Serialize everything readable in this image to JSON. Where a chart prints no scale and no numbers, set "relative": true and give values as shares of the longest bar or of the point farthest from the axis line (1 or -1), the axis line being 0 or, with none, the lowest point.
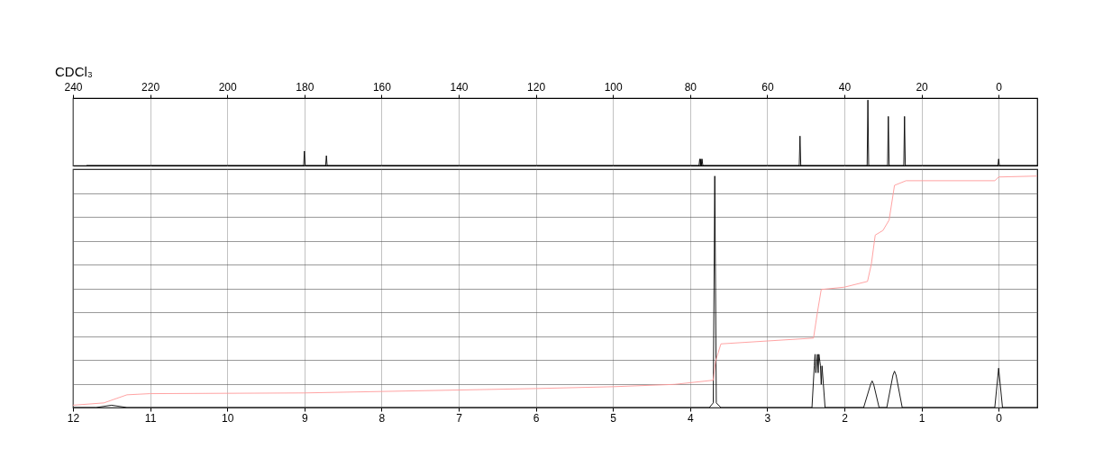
{
  "chart_data": [
    {
      "type": "line",
      "annotations": [
        "CDCl₃"
      ],
      "xlim": [
        240,
        -10
      ],
      "xticks": [
        240,
        220,
        200,
        180,
        160,
        140,
        120,
        100,
        80,
        60,
        40,
        20,
        0
      ],
      "relative": true,
      "tick_labels": "x",
      "grid": "x",
      "series": [
        {
          "color": "#000000",
          "x": [
            236.5,
            180.2,
            180.0,
            179.8,
            174.5,
            174.3,
            174.1,
            77.7,
            77.5,
            77.3,
            77.2,
            77.1,
            76.9,
            76.7,
            51.7,
            51.5,
            51.3,
            34.1,
            33.9,
            33.7,
            28.8,
            28.6,
            28.4,
            24.6,
            24.4,
            24.2,
            0.2,
            0.0,
            -0.2,
            -10
          ],
          "values": [
            0,
            0,
            0.22,
            0,
            0,
            0.15,
            0,
            0,
            0.1,
            0,
            0.1,
            0,
            0.1,
            0,
            0,
            0.45,
            0,
            0,
            1.0,
            0,
            0,
            0.75,
            0,
            0,
            0.75,
            0,
            0,
            0.1,
            0,
            0
          ]
        }
      ]
    },
    {
      "type": "line",
      "xlim": [
        12,
        -0.5
      ],
      "xticks": [
        12,
        11,
        10,
        9,
        8,
        7,
        6,
        5,
        4,
        3,
        2,
        1,
        0
      ],
      "relative": true,
      "tick_labels": "x",
      "grid": true,
      "series": [
        {
          "color": "#000000",
          "x": [
            12,
            11.7,
            11.5,
            11.3,
            3.75,
            3.7,
            3.68,
            3.66,
            3.6,
            2.42,
            2.39,
            2.38,
            2.37,
            2.35,
            2.34,
            2.33,
            2.31,
            2.3,
            2.29,
            2.25,
            1.75,
            1.66,
            1.64,
            1.62,
            1.55,
            1.45,
            1.37,
            1.35,
            1.33,
            1.25,
            0.05,
            0.0,
            -0.05,
            -0.5
          ],
          "values": [
            0,
            0,
            0.01,
            0,
            0,
            0.02,
            1.0,
            0.02,
            0,
            0,
            0.18,
            0.23,
            0.15,
            0.23,
            0.15,
            0.23,
            0.18,
            0.1,
            0.18,
            0,
            0,
            0.1,
            0.115,
            0.1,
            0,
            0,
            0.14,
            0.157,
            0.14,
            0,
            0,
            0.17,
            0,
            0
          ]
        },
        {
          "color": "#ff9999",
          "x": [
            12,
            11.6,
            11.3,
            11,
            9,
            6,
            5,
            4.2,
            3.7,
            3.67,
            3.6,
            2.4,
            2.35,
            2.3,
            2.0,
            1.7,
            1.65,
            1.6,
            1.5,
            1.42,
            1.35,
            1.2,
            0.05,
            0.0,
            -0.5
          ],
          "values": [
            0.01,
            0.02,
            0.055,
            0.06,
            0.063,
            0.082,
            0.09,
            0.1,
            0.118,
            0.2,
            0.275,
            0.3,
            0.41,
            0.51,
            0.52,
            0.545,
            0.62,
            0.745,
            0.765,
            0.81,
            0.96,
            0.98,
            0.98,
            0.996,
            1.0
          ]
        }
      ]
    }
  ]
}
